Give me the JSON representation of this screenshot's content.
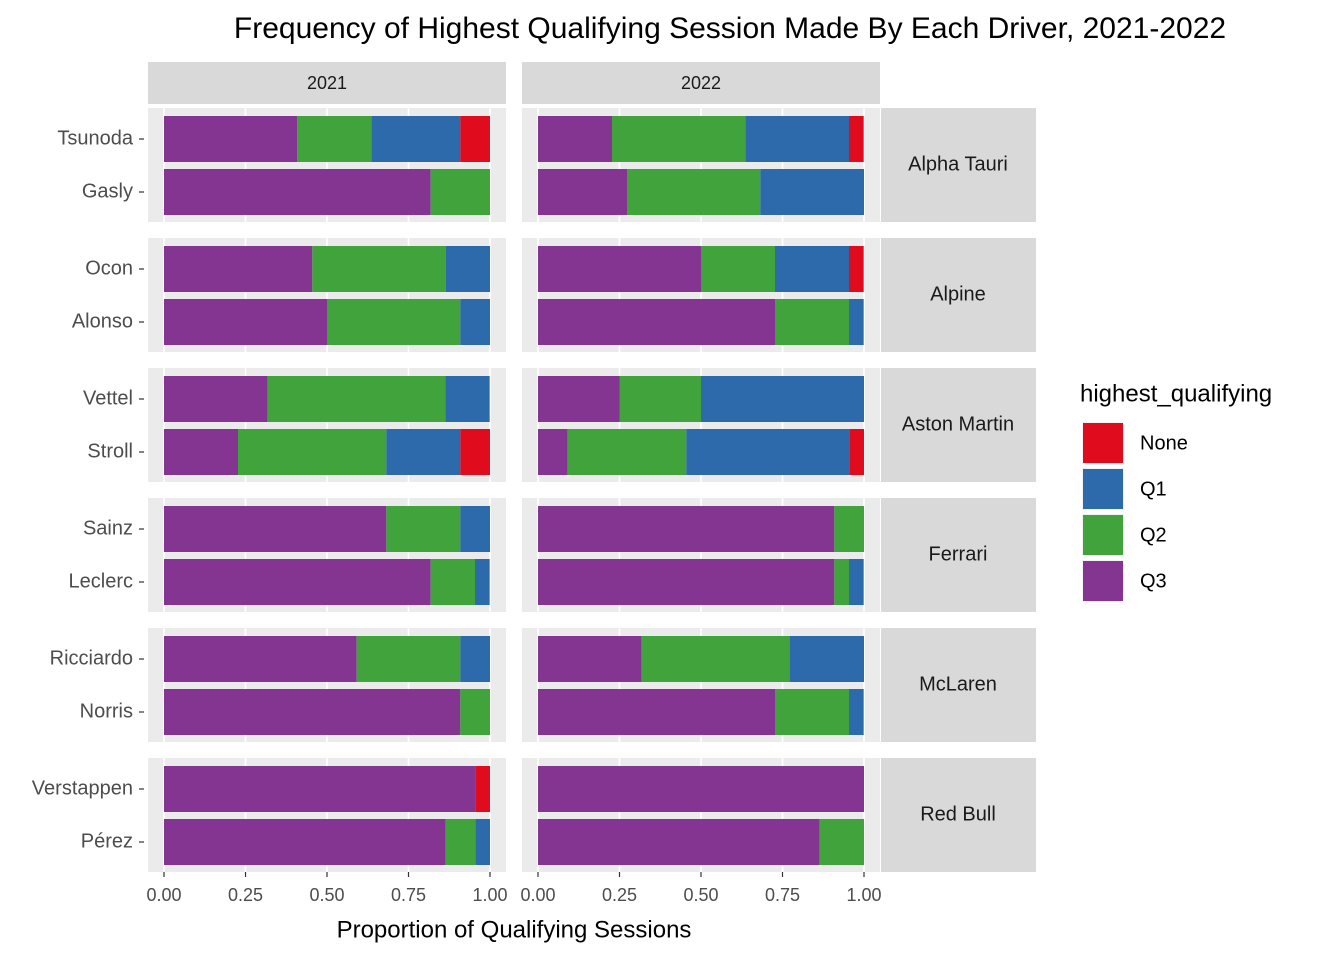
{
  "chart_data": {
    "type": "bar",
    "orientation": "horizontal",
    "stacked": true,
    "title": "Frequency of Highest Qualifying Session Made By Each Driver, 2021-2022",
    "x_label": "Proportion of Qualifying Sessions",
    "legend_title": "highest_qualifying",
    "legend_position": "right",
    "facets": [
      "2021",
      "2022"
    ],
    "groups": [
      {
        "name": "Alpha Tauri",
        "categories": [
          "Tsunoda",
          "Gasly"
        ]
      },
      {
        "name": "Alpine",
        "categories": [
          "Ocon",
          "Alonso"
        ]
      },
      {
        "name": "Aston Martin",
        "categories": [
          "Vettel",
          "Stroll"
        ]
      },
      {
        "name": "Ferrari",
        "categories": [
          "Sainz",
          "Leclerc"
        ]
      },
      {
        "name": "McLaren",
        "categories": [
          "Ricciardo",
          "Norris"
        ]
      },
      {
        "name": "Red Bull",
        "categories": [
          "Verstappen",
          "Pérez"
        ]
      }
    ],
    "series": [
      {
        "name": "None",
        "color": "#e00b1c",
        "values": [
          [
            0.091,
            0,
            0,
            0,
            0,
            0.091,
            0,
            0,
            0,
            0,
            0.045,
            0
          ],
          [
            0.045,
            0,
            0.045,
            0,
            0,
            0.045,
            0,
            0,
            0,
            0,
            0,
            0
          ]
        ]
      },
      {
        "name": "Q1",
        "color": "#2d6aab",
        "values": [
          [
            0.273,
            0,
            0.136,
            0.091,
            0.136,
            0.227,
            0.091,
            0.045,
            0.091,
            0,
            0,
            0.045
          ],
          [
            0.318,
            0.318,
            0.227,
            0.045,
            0.5,
            0.5,
            0,
            0.045,
            0.227,
            0.045,
            0,
            0
          ]
        ]
      },
      {
        "name": "Q2",
        "color": "#41a33c",
        "values": [
          [
            0.227,
            0.182,
            0.409,
            0.409,
            0.545,
            0.455,
            0.227,
            0.136,
            0.318,
            0.091,
            0,
            0.091
          ],
          [
            0.409,
            0.409,
            0.227,
            0.227,
            0.25,
            0.364,
            0.091,
            0.045,
            0.455,
            0.227,
            0,
            0.136
          ]
        ]
      },
      {
        "name": "Q3",
        "color": "#843591",
        "values": [
          [
            0.409,
            0.818,
            0.455,
            0.5,
            0.318,
            0.227,
            0.682,
            0.818,
            0.591,
            0.909,
            0.955,
            0.864
          ],
          [
            0.227,
            0.273,
            0.5,
            0.727,
            0.25,
            0.091,
            0.909,
            0.909,
            0.318,
            0.727,
            1,
            0.864
          ]
        ]
      }
    ],
    "xlim": [
      0,
      1
    ],
    "xticks": [
      {
        "value": 0,
        "label": "0.00"
      },
      {
        "value": 0.25,
        "label": "0.25"
      },
      {
        "value": 0.5,
        "label": "0.50"
      },
      {
        "value": 0.75,
        "label": "0.75"
      },
      {
        "value": 1,
        "label": "1.00"
      }
    ],
    "grid": true
  }
}
